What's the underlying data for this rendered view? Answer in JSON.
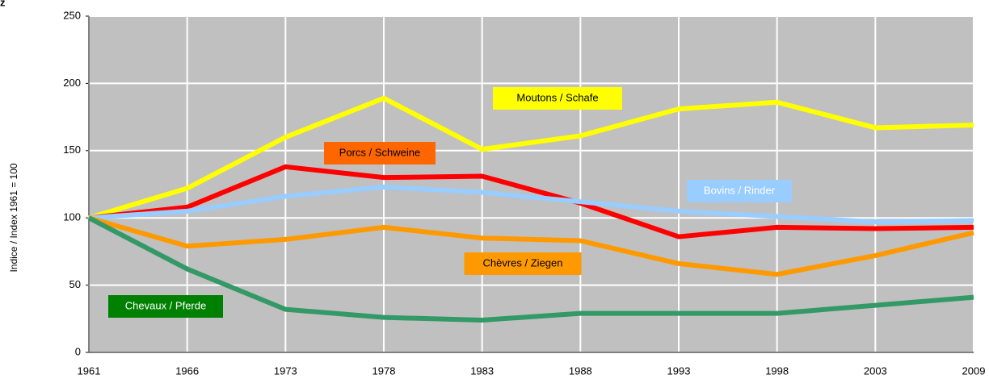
{
  "corner_label": "z",
  "chart_data": {
    "type": "line",
    "y_label": "Indice / Index 1961 = 100",
    "categories": [
      "1961",
      "1966",
      "1973",
      "1978",
      "1983",
      "1988",
      "1993",
      "1998",
      "2003",
      "2009"
    ],
    "series": [
      {
        "name": "Moutons / Schafe",
        "color": "#ffff00",
        "values": [
          100,
          122,
          160,
          189,
          151,
          161,
          181,
          186,
          167,
          169
        ]
      },
      {
        "name": "Porcs / Schweine",
        "color": "#ff0000",
        "values": [
          100,
          108,
          138,
          130,
          131,
          111,
          86,
          93,
          92,
          93
        ]
      },
      {
        "name": "Bovins / Rinder",
        "color": "#99ccff",
        "values": [
          100,
          105,
          116,
          123,
          119,
          112,
          105,
          101,
          97,
          98
        ]
      },
      {
        "name": "Chèvres / Ziegen",
        "color": "#ff9900",
        "values": [
          100,
          79,
          84,
          93,
          85,
          83,
          66,
          58,
          72,
          89
        ]
      },
      {
        "name": "Chevaux / Pferde",
        "color": "#339966",
        "values": [
          100,
          62,
          32,
          26,
          24,
          29,
          29,
          29,
          35,
          41
        ]
      }
    ],
    "ylim": [
      0,
      250
    ],
    "yticks": [
      0,
      50,
      100,
      150,
      200,
      250
    ],
    "grid": true,
    "background": "#c0c0c0"
  }
}
